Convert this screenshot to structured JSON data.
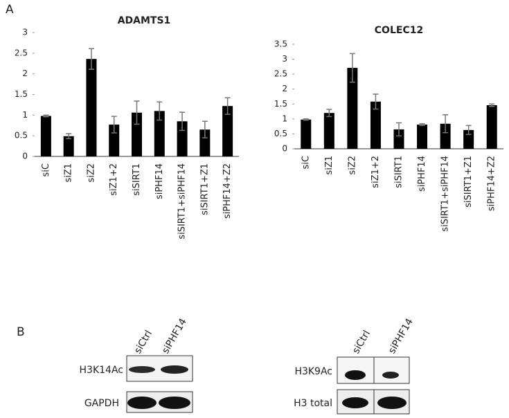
{
  "panel_labels": [
    "A",
    "B"
  ],
  "chart_data": [
    {
      "type": "bar",
      "title": "ADAMTS1",
      "categories": [
        "siC",
        "siZ1",
        "siZ2",
        "siZ1+2",
        "siSIRT1",
        "siPHF14",
        "siSIRT1+siPHF14",
        "siSIRT1+Z1",
        "siPHF14+Z2"
      ],
      "values": [
        0.98,
        0.49,
        2.36,
        0.77,
        1.06,
        1.1,
        0.85,
        0.65,
        1.22
      ],
      "errors": [
        0.02,
        0.06,
        0.25,
        0.2,
        0.28,
        0.22,
        0.22,
        0.2,
        0.2
      ],
      "color": "#000000",
      "ylim": [
        0,
        3
      ],
      "yticks": [
        0,
        0.5,
        1,
        1.5,
        2,
        2.5,
        3
      ]
    },
    {
      "type": "bar",
      "title": "COLEC12",
      "categories": [
        "siC",
        "siZ1",
        "siZ2",
        "siZ1+2",
        "siSIRT1",
        "siPHF14",
        "siSIRT1+siPHF14",
        "siSIRT1+Z1",
        "siPHF14+Z2"
      ],
      "values": [
        0.98,
        1.2,
        2.71,
        1.58,
        0.65,
        0.81,
        0.84,
        0.63,
        1.46
      ],
      "errors": [
        0.02,
        0.12,
        0.48,
        0.25,
        0.22,
        0.03,
        0.3,
        0.15,
        0.04
      ],
      "color": "#000000",
      "ylim": [
        0,
        3.5
      ],
      "yticks": [
        0,
        0.5,
        1,
        1.5,
        2,
        2.5,
        3,
        3.5
      ]
    }
  ],
  "blots": [
    {
      "lanes": [
        "siCtrl",
        "siPHF14"
      ],
      "rows": [
        "H3K14Ac",
        "GAPDH"
      ]
    },
    {
      "lanes": [
        "siCtrl",
        "siPHF14"
      ],
      "rows": [
        "H3K9Ac",
        "H3 total"
      ]
    }
  ]
}
